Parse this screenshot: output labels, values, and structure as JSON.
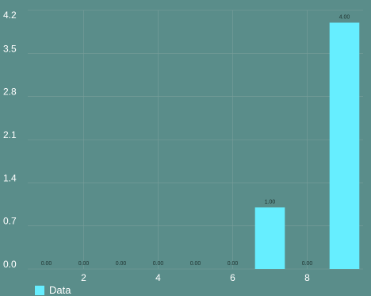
{
  "chart_data": {
    "type": "bar",
    "x": [
      1,
      2,
      3,
      4,
      5,
      6,
      7,
      8,
      9
    ],
    "values": [
      0.0,
      0.0,
      0.0,
      0.0,
      0.0,
      0.0,
      1.0,
      0.0,
      4.0
    ],
    "value_labels": [
      "0.00",
      "0.00",
      "0.00",
      "0.00",
      "0.00",
      "0.00",
      "1.00",
      "0.00",
      "4.00"
    ],
    "y_ticks": [
      "0.0",
      "0.7",
      "1.4",
      "2.1",
      "2.8",
      "3.5",
      "4.2"
    ],
    "y_tick_values": [
      0.0,
      0.7,
      1.4,
      2.1,
      2.8,
      3.5,
      4.2
    ],
    "x_ticks": [
      "2",
      "4",
      "6",
      "8"
    ],
    "x_tick_values": [
      2,
      4,
      6,
      8
    ],
    "ylim": [
      0,
      4.2
    ],
    "xlim": [
      0.5,
      9.5
    ],
    "grid": true,
    "legend_position": "bottom-left",
    "series": [
      {
        "name": "Data",
        "color": "#66eeff"
      }
    ],
    "title": "",
    "xlabel": "",
    "ylabel": ""
  },
  "colors": {
    "background": "#5a8d8a",
    "bar": "#66eeff",
    "grid": "#7a9e9a",
    "text": "#ffffff",
    "value_label": "#1f3330"
  }
}
